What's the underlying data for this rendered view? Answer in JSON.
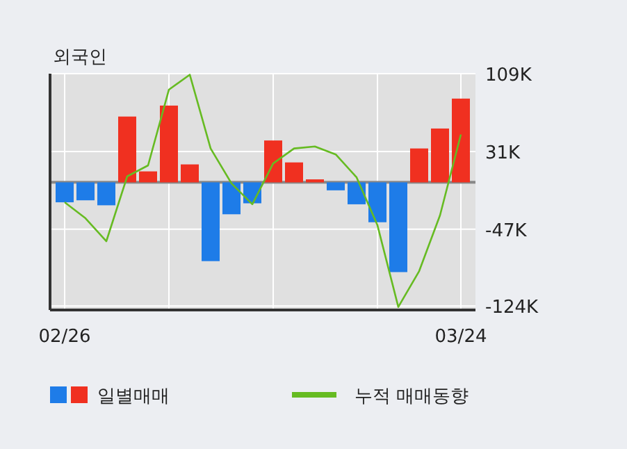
{
  "chart_data": {
    "type": "bar",
    "title": "외국인",
    "categories": [
      "02/26",
      null,
      null,
      null,
      null,
      null,
      null,
      null,
      null,
      null,
      null,
      null,
      null,
      null,
      null,
      null,
      null,
      null,
      null,
      "03/24"
    ],
    "series": [
      {
        "name": "일별매매",
        "colors": [
          "#1e7ce8",
          "#1e7ce8",
          "#1e7ce8",
          "#f03020",
          "#f03020",
          "#f03020",
          "#f03020",
          "#1e7ce8",
          "#1e7ce8",
          "#1e7ce8",
          "#f03020",
          "#f03020",
          "#f03020",
          "#1e7ce8",
          "#1e7ce8",
          "#1e7ce8",
          "#1e7ce8",
          "#f03020",
          "#f03020",
          "#f03020"
        ],
        "values": [
          -20,
          -18,
          -23,
          66,
          11,
          77,
          18,
          -79,
          -32,
          -21,
          42,
          20,
          3,
          -8,
          -22,
          -40,
          -90,
          34,
          54,
          84
        ]
      },
      {
        "name": "누적 매매동향",
        "type": "line",
        "color": "#66bb22",
        "values": [
          -20,
          -36,
          -59,
          6,
          17,
          93,
          108,
          34,
          -1,
          -22,
          19,
          34,
          36,
          28,
          5,
          -43,
          -125,
          -89,
          -33,
          48
        ]
      }
    ],
    "ylim": [
      -128,
      109
    ],
    "yticks": [
      {
        "value": 109,
        "label": "109K"
      },
      {
        "value": 31,
        "label": "31K"
      },
      {
        "value": -47,
        "label": "-47K"
      },
      {
        "value": -124,
        "label": "-124K"
      }
    ],
    "grid": true,
    "legend": "bottom"
  }
}
